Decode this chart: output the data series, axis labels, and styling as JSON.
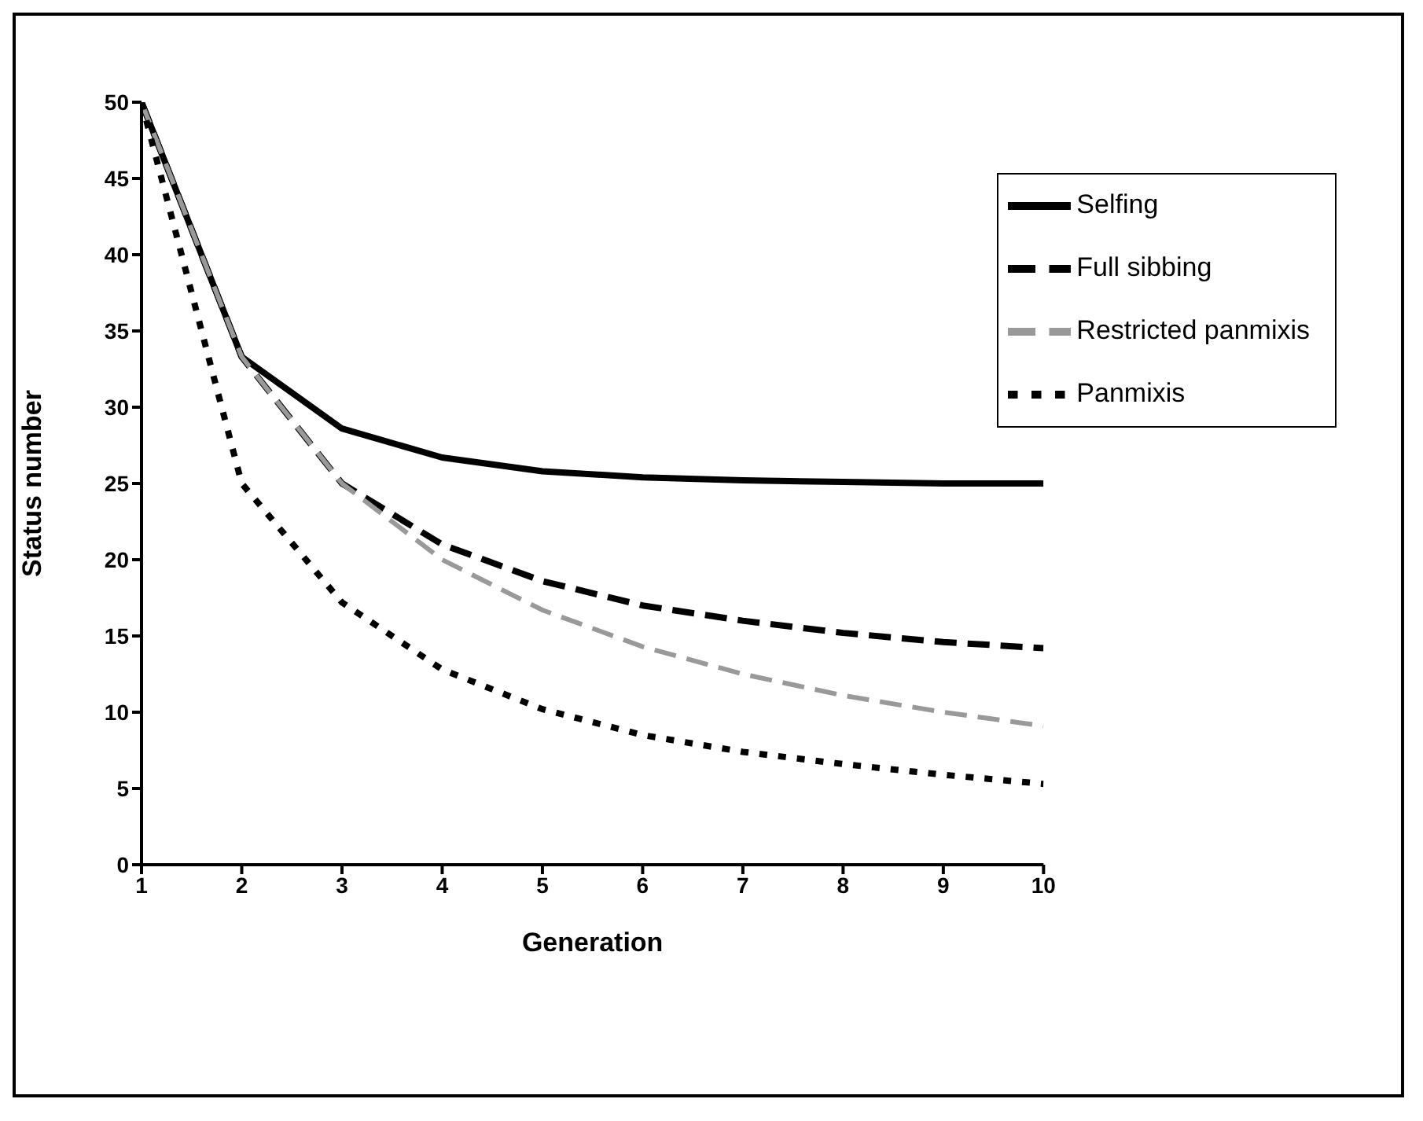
{
  "chart_data": {
    "type": "line",
    "xlabel": "Generation",
    "ylabel": "Status number",
    "x": [
      1,
      2,
      3,
      4,
      5,
      6,
      7,
      8,
      9,
      10
    ],
    "xlim": [
      1,
      10
    ],
    "xticks": [
      1,
      2,
      3,
      4,
      5,
      6,
      7,
      8,
      9,
      10
    ],
    "ylim": [
      0,
      50
    ],
    "yticks": [
      0,
      5,
      10,
      15,
      20,
      25,
      30,
      35,
      40,
      45,
      50
    ],
    "grid": false,
    "legend": "top right",
    "marker": "none",
    "series": [
      {
        "name": "Selfing",
        "color": "#000000",
        "line_style": "solid",
        "values": [
          50,
          33.3,
          28.6,
          26.7,
          25.8,
          25.4,
          25.2,
          25.1,
          25.0,
          25.0
        ]
      },
      {
        "name": "Full sibbing",
        "color": "#000000",
        "line_style": "dashed",
        "values": [
          50,
          33.3,
          25,
          21,
          18.6,
          17,
          16,
          15.2,
          14.6,
          14.2
        ]
      },
      {
        "name": "Restricted panmixis",
        "color": "#999999",
        "line_style": "dashed",
        "values": [
          50,
          33.3,
          25,
          20,
          16.7,
          14.3,
          12.5,
          11.1,
          10,
          9.1
        ]
      },
      {
        "name": "Panmixis",
        "color": "#000000",
        "line_style": "dotted",
        "values": [
          50,
          25,
          17.2,
          12.8,
          10.2,
          8.5,
          7.4,
          6.6,
          5.9,
          5.3
        ]
      }
    ]
  }
}
